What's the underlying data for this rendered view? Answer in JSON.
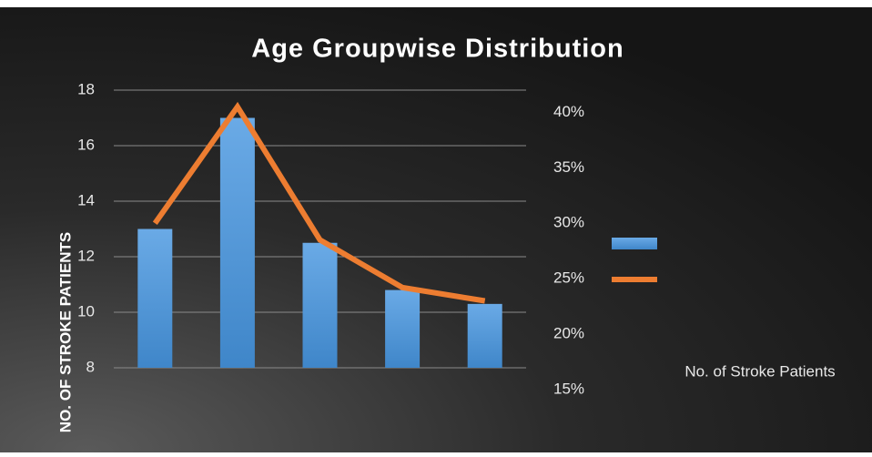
{
  "chart_data": {
    "type": "bar_line",
    "title": "Age Groupwise Distribution",
    "ylabel": "NO. OF STROKE PATIENTS",
    "y2label": "No. of Stroke Patients",
    "categories": [
      null,
      null,
      null,
      null,
      null
    ],
    "series": [
      {
        "type": "bar",
        "color": "#5b9bd5",
        "values": [
          13,
          17,
          12.5,
          10.8,
          10.3
        ]
      },
      {
        "type": "line",
        "color": "#ed7d31",
        "axis": "y2",
        "values": [
          30,
          40.5,
          28.5,
          24.2,
          23
        ]
      }
    ],
    "ylim": [
      8,
      18
    ],
    "yticks": [
      8,
      10,
      12,
      14,
      16,
      18
    ],
    "y2lim": [
      15,
      42
    ],
    "y2ticks": [
      {
        "value": 15,
        "label": "15%"
      },
      {
        "value": 20,
        "label": "20%"
      },
      {
        "value": 25,
        "label": "25%"
      },
      {
        "value": 30,
        "label": "30%"
      },
      {
        "value": 35,
        "label": "35%"
      },
      {
        "value": 40,
        "label": "40%"
      }
    ],
    "grid": true,
    "legend": "right"
  }
}
